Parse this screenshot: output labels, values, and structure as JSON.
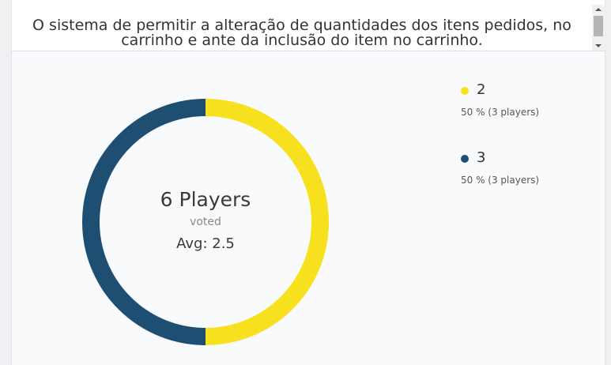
{
  "question": {
    "text_line1": "O sistema de permitir a alteração de quantidades dos itens pedidos, no",
    "text_line2": "carrinho e ante da inclusão do item no carrinho."
  },
  "summary": {
    "total": "6 Players",
    "voted": "voted",
    "avg": "Avg: 2.5"
  },
  "legend": [
    {
      "label": "2",
      "detail": "50 % (3 players)",
      "color": "#f7e11e"
    },
    {
      "label": "3",
      "detail": "50 % (3 players)",
      "color": "#1f4e73"
    }
  ],
  "chart_data": {
    "type": "pie",
    "categories": [
      "2",
      "3"
    ],
    "values": [
      3,
      3
    ],
    "percentages": [
      50,
      50
    ],
    "colors": [
      "#f7e11e",
      "#1f4e73"
    ],
    "title": "",
    "legend_placement": "right"
  }
}
